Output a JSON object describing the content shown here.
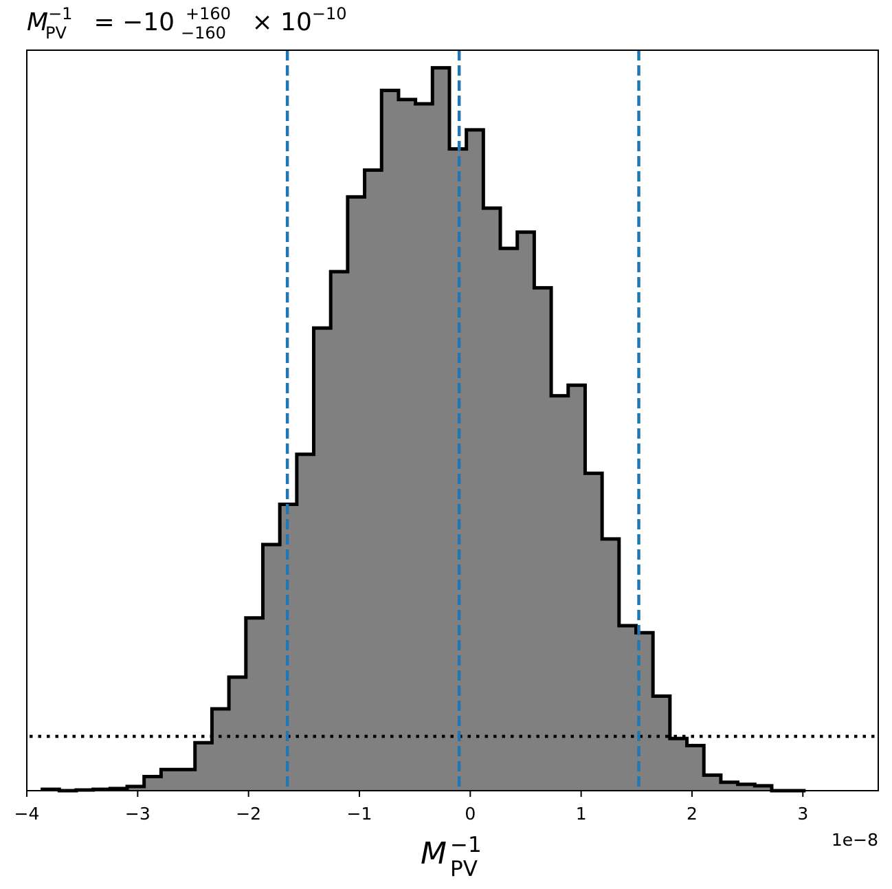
{
  "chart_data": {
    "type": "bar",
    "title": {
      "sym": "M",
      "sub": "PV",
      "sup": "−1",
      "eq": " = −10",
      "err_plus": "+160",
      "err_minus": "−160",
      "times": " × 10",
      "exp": "−10"
    },
    "xlabel": {
      "sym": "M",
      "sub": "PV",
      "sup": "−1"
    },
    "ylabel": "",
    "x_offset_text": "1e−8",
    "xlim": [
      -4.0,
      3.68
    ],
    "ylim": [
      0,
      1.05
    ],
    "x_ticks": [
      -4,
      -3,
      -2,
      -1,
      0,
      1,
      2,
      3
    ],
    "x_tick_labels": [
      "−4",
      "−3",
      "−2",
      "−1",
      "0",
      "1",
      "2",
      "3"
    ],
    "hist_bin_edges": [
      -3.86,
      -3.707,
      -3.554,
      -3.401,
      -3.248,
      -3.095,
      -2.942,
      -2.789,
      -2.636,
      -2.483,
      -2.33,
      -2.177,
      -2.024,
      -1.871,
      -1.718,
      -1.565,
      -1.412,
      -1.259,
      -1.106,
      -0.953,
      -0.8,
      -0.647,
      -0.494,
      -0.341,
      -0.188,
      -0.035,
      0.118,
      0.271,
      0.424,
      0.577,
      0.73,
      0.883,
      1.036,
      1.189,
      1.342,
      1.495,
      1.648,
      1.801,
      1.954,
      2.107,
      2.26,
      2.413,
      2.566,
      2.719,
      2.872,
      3.025
    ],
    "hist_values": [
      0.002,
      0.0,
      0.001,
      0.002,
      0.003,
      0.006,
      0.02,
      0.03,
      0.03,
      0.068,
      0.116,
      0.161,
      0.245,
      0.349,
      0.406,
      0.477,
      0.656,
      0.736,
      0.842,
      0.88,
      0.993,
      0.98,
      0.974,
      1.025,
      0.91,
      0.937,
      0.826,
      0.769,
      0.792,
      0.713,
      0.56,
      0.575,
      0.45,
      0.357,
      0.234,
      0.224,
      0.134,
      0.074,
      0.064,
      0.022,
      0.012,
      0.009,
      0.007,
      0.0,
      0.0
    ],
    "hist_fill": "#808080",
    "hist_edge": "#000000",
    "quantile_lines": [
      -1.65,
      -0.1,
      1.52
    ],
    "quantile_color": "#1f77b4",
    "reference_line_y": 0.077,
    "reference_line_style": "dotted",
    "grid": false,
    "legend": "none"
  }
}
